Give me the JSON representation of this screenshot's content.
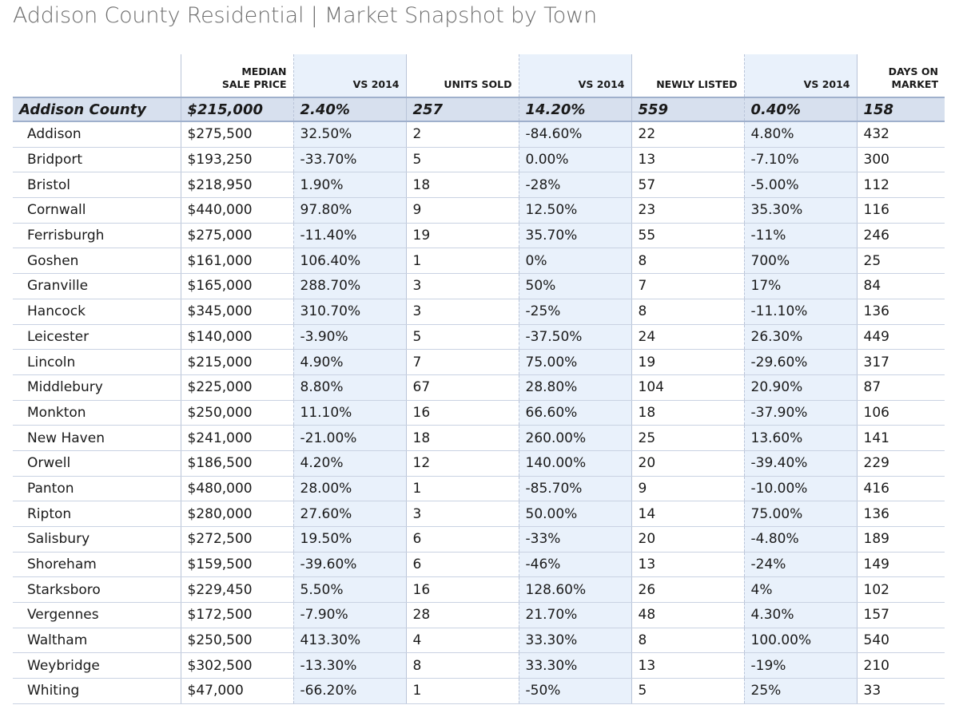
{
  "title": "Addison County Residential | Market Snapshot by Town",
  "chart_data": {
    "type": "table",
    "columns": [
      "",
      "MEDIAN SALE PRICE",
      "VS 2014",
      "UNITS SOLD",
      "VS 2014",
      "NEWLY LISTED",
      "VS 2014",
      "DAYS ON MARKET"
    ],
    "header_lines": [
      [
        ""
      ],
      [
        "MEDIAN",
        "SALE PRICE"
      ],
      [
        "VS 2014"
      ],
      [
        "UNITS SOLD"
      ],
      [
        "VS 2014"
      ],
      [
        "NEWLY LISTED"
      ],
      [
        "VS 2014"
      ],
      [
        "DAYS ON",
        "MARKET"
      ]
    ],
    "summary_row": [
      "Addison County",
      "$215,000",
      "2.40%",
      "257",
      "14.20%",
      "559",
      "0.40%",
      "158"
    ],
    "rows": [
      [
        "Addison",
        "$275,500",
        "32.50%",
        "2",
        "-84.60%",
        "22",
        "4.80%",
        "432"
      ],
      [
        "Bridport",
        "$193,250",
        "-33.70%",
        "5",
        "0.00%",
        "13",
        "-7.10%",
        "300"
      ],
      [
        "Bristol",
        "$218,950",
        "1.90%",
        "18",
        "-28%",
        "57",
        "-5.00%",
        "112"
      ],
      [
        "Cornwall",
        "$440,000",
        "97.80%",
        "9",
        "12.50%",
        "23",
        "35.30%",
        "116"
      ],
      [
        "Ferrisburgh",
        "$275,000",
        "-11.40%",
        "19",
        "35.70%",
        "55",
        "-11%",
        "246"
      ],
      [
        "Goshen",
        "$161,000",
        "106.40%",
        "1",
        "0%",
        "8",
        "700%",
        "25"
      ],
      [
        "Granville",
        "$165,000",
        "288.70%",
        "3",
        "50%",
        "7",
        "17%",
        "84"
      ],
      [
        "Hancock",
        "$345,000",
        "310.70%",
        "3",
        "-25%",
        "8",
        "-11.10%",
        "136"
      ],
      [
        "Leicester",
        "$140,000",
        "-3.90%",
        "5",
        "-37.50%",
        "24",
        "26.30%",
        "449"
      ],
      [
        "Lincoln",
        "$215,000",
        "4.90%",
        "7",
        "75.00%",
        "19",
        "-29.60%",
        "317"
      ],
      [
        "Middlebury",
        "$225,000",
        "8.80%",
        "67",
        "28.80%",
        "104",
        "20.90%",
        "87"
      ],
      [
        "Monkton",
        "$250,000",
        "11.10%",
        "16",
        "66.60%",
        "18",
        "-37.90%",
        "106"
      ],
      [
        "New Haven",
        "$241,000",
        "-21.00%",
        "18",
        "260.00%",
        "25",
        "13.60%",
        "141"
      ],
      [
        "Orwell",
        "$186,500",
        "4.20%",
        "12",
        "140.00%",
        "20",
        "-39.40%",
        "229"
      ],
      [
        "Panton",
        "$480,000",
        "28.00%",
        "1",
        "-85.70%",
        "9",
        "-10.00%",
        "416"
      ],
      [
        "Ripton",
        "$280,000",
        "27.60%",
        "3",
        "50.00%",
        "14",
        "75.00%",
        "136"
      ],
      [
        "Salisbury",
        "$272,500",
        "19.50%",
        "6",
        "-33%",
        "20",
        "-4.80%",
        "189"
      ],
      [
        "Shoreham",
        "$159,500",
        "-39.60%",
        "6",
        "-46%",
        "13",
        "-24%",
        "149"
      ],
      [
        "Starksboro",
        "$229,450",
        "5.50%",
        "16",
        "128.60%",
        "26",
        "4%",
        "102"
      ],
      [
        "Vergennes",
        "$172,500",
        "-7.90%",
        "28",
        "21.70%",
        "48",
        "4.30%",
        "157"
      ],
      [
        "Waltham",
        "$250,500",
        "413.30%",
        "4",
        "33.30%",
        "8",
        "100.00%",
        "540"
      ],
      [
        "Weybridge",
        "$302,500",
        "-13.30%",
        "8",
        "33.30%",
        "13",
        "-19%",
        "210"
      ],
      [
        "Whiting",
        "$47,000",
        "-66.20%",
        "1",
        "-50%",
        "5",
        "25%",
        "33"
      ]
    ]
  }
}
